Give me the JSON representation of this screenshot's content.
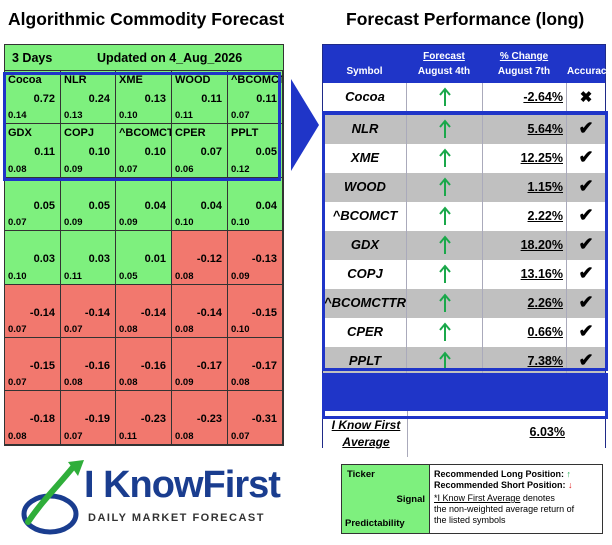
{
  "titles": {
    "left": "Algorithmic Commodity Forecast",
    "right": "Forecast Performance (long)"
  },
  "heatmap": {
    "days": "3 Days",
    "updated": "Updated on 4_Aug_2026",
    "rows": [
      [
        {
          "name": "Cocoa",
          "signal": "0.72",
          "pred": "0.14",
          "color": "g"
        },
        {
          "name": "NLR",
          "signal": "0.24",
          "pred": "0.13",
          "color": "g"
        },
        {
          "name": "XME",
          "signal": "0.13",
          "pred": "0.10",
          "color": "g"
        },
        {
          "name": "WOOD",
          "signal": "0.11",
          "pred": "0.11",
          "color": "g"
        },
        {
          "name": "^BCOMCT",
          "signal": "0.11",
          "pred": "0.07",
          "color": "g"
        }
      ],
      [
        {
          "name": "GDX",
          "signal": "0.11",
          "pred": "0.08",
          "color": "g"
        },
        {
          "name": "COPJ",
          "signal": "0.10",
          "pred": "0.09",
          "color": "g"
        },
        {
          "name": "^BCOMCTTR",
          "signal": "0.10",
          "pred": "0.07",
          "color": "g"
        },
        {
          "name": "CPER",
          "signal": "0.07",
          "pred": "0.06",
          "color": "g"
        },
        {
          "name": "PPLT",
          "signal": "0.05",
          "pred": "0.12",
          "color": "g"
        }
      ],
      [
        {
          "name": "",
          "signal": "0.05",
          "pred": "0.07",
          "color": "g"
        },
        {
          "name": "",
          "signal": "0.05",
          "pred": "0.09",
          "color": "g"
        },
        {
          "name": "",
          "signal": "0.04",
          "pred": "0.09",
          "color": "g"
        },
        {
          "name": "",
          "signal": "0.04",
          "pred": "0.10",
          "color": "g"
        },
        {
          "name": "",
          "signal": "0.04",
          "pred": "0.10",
          "color": "g"
        }
      ],
      [
        {
          "name": "",
          "signal": "0.03",
          "pred": "0.10",
          "color": "g"
        },
        {
          "name": "",
          "signal": "0.03",
          "pred": "0.11",
          "color": "g"
        },
        {
          "name": "",
          "signal": "0.01",
          "pred": "0.05",
          "color": "g"
        },
        {
          "name": "",
          "signal": "-0.12",
          "pred": "0.08",
          "color": "r"
        },
        {
          "name": "",
          "signal": "-0.13",
          "pred": "0.09",
          "color": "r"
        }
      ],
      [
        {
          "name": "",
          "signal": "-0.14",
          "pred": "0.07",
          "color": "r"
        },
        {
          "name": "",
          "signal": "-0.14",
          "pred": "0.07",
          "color": "r"
        },
        {
          "name": "",
          "signal": "-0.14",
          "pred": "0.08",
          "color": "r"
        },
        {
          "name": "",
          "signal": "-0.14",
          "pred": "0.08",
          "color": "r"
        },
        {
          "name": "",
          "signal": "-0.15",
          "pred": "0.10",
          "color": "r"
        }
      ],
      [
        {
          "name": "",
          "signal": "-0.15",
          "pred": "0.07",
          "color": "r"
        },
        {
          "name": "",
          "signal": "-0.16",
          "pred": "0.08",
          "color": "r"
        },
        {
          "name": "",
          "signal": "-0.16",
          "pred": "0.08",
          "color": "r"
        },
        {
          "name": "",
          "signal": "-0.17",
          "pred": "0.09",
          "color": "r"
        },
        {
          "name": "",
          "signal": "-0.17",
          "pred": "0.08",
          "color": "r"
        }
      ],
      [
        {
          "name": "",
          "signal": "-0.18",
          "pred": "0.08",
          "color": "r"
        },
        {
          "name": "",
          "signal": "-0.19",
          "pred": "0.07",
          "color": "r"
        },
        {
          "name": "",
          "signal": "-0.23",
          "pred": "0.11",
          "color": "r"
        },
        {
          "name": "",
          "signal": "-0.23",
          "pred": "0.08",
          "color": "r"
        },
        {
          "name": "",
          "signal": "-0.31",
          "pred": "0.07",
          "color": "r"
        }
      ]
    ]
  },
  "performance": {
    "header": {
      "symbol": "Symbol",
      "forecast_top": "Forecast",
      "forecast_bottom": "August 4th",
      "change_top": "% Change",
      "change_bottom": "August 7th",
      "accuracy": "Accuracy"
    },
    "rows": [
      {
        "symbol": "Cocoa",
        "forecast": "up",
        "change": "-2.64%",
        "accuracy": "✖",
        "correct": false,
        "shade": "w"
      },
      {
        "symbol": "NLR",
        "forecast": "up",
        "change": "5.64%",
        "accuracy": "✔",
        "correct": true,
        "shade": "gr"
      },
      {
        "symbol": "XME",
        "forecast": "up",
        "change": "12.25%",
        "accuracy": "✔",
        "correct": true,
        "shade": "w"
      },
      {
        "symbol": "WOOD",
        "forecast": "up",
        "change": "1.15%",
        "accuracy": "✔",
        "correct": true,
        "shade": "gr"
      },
      {
        "symbol": "^BCOMCT",
        "forecast": "up",
        "change": "2.22%",
        "accuracy": "✔",
        "correct": true,
        "shade": "w"
      },
      {
        "symbol": "GDX",
        "forecast": "up",
        "change": "18.20%",
        "accuracy": "✔",
        "correct": true,
        "shade": "gr"
      },
      {
        "symbol": "COPJ",
        "forecast": "up",
        "change": "13.16%",
        "accuracy": "✔",
        "correct": true,
        "shade": "w"
      },
      {
        "symbol": "^BCOMCTTR",
        "forecast": "up",
        "change": "2.26%",
        "accuracy": "✔",
        "correct": true,
        "shade": "gr"
      },
      {
        "symbol": "CPER",
        "forecast": "up",
        "change": "0.66%",
        "accuracy": "✔",
        "correct": true,
        "shade": "w"
      },
      {
        "symbol": "PPLT",
        "forecast": "up",
        "change": "7.38%",
        "accuracy": "✔",
        "correct": true,
        "shade": "gr"
      }
    ],
    "average": {
      "label_line1": "I Know First",
      "label_line2": "Average",
      "value": "6.03%"
    }
  },
  "logo": {
    "name_part1": "I Know",
    "name_part2": "First",
    "tagline": "DAILY MARKET FORECAST"
  },
  "legend": {
    "ticker": "Ticker",
    "signal": "Signal",
    "predictability": "Predictability",
    "long_label": "Recommended Long Position:",
    "short_label": "Recommended Short Position:",
    "ikf_term": "*I Know First Average",
    "ikf_desc1": " denotes",
    "ikf_desc2": "the non-weighted average return of",
    "ikf_desc3": "the listed symbols"
  },
  "colors": {
    "positive_cell": "#7ef07e",
    "negative_cell": "#f2786e",
    "highlight_blue": "#1f35c8",
    "arrow_green": "#1aa84a",
    "arrow_red": "#e02020",
    "logo_blue": "#1a3d8f"
  },
  "icons": {
    "forecast_up": "up-arrow-icon",
    "correct": "check-icon",
    "incorrect": "cross-icon",
    "pointer": "right-arrow-icon"
  }
}
